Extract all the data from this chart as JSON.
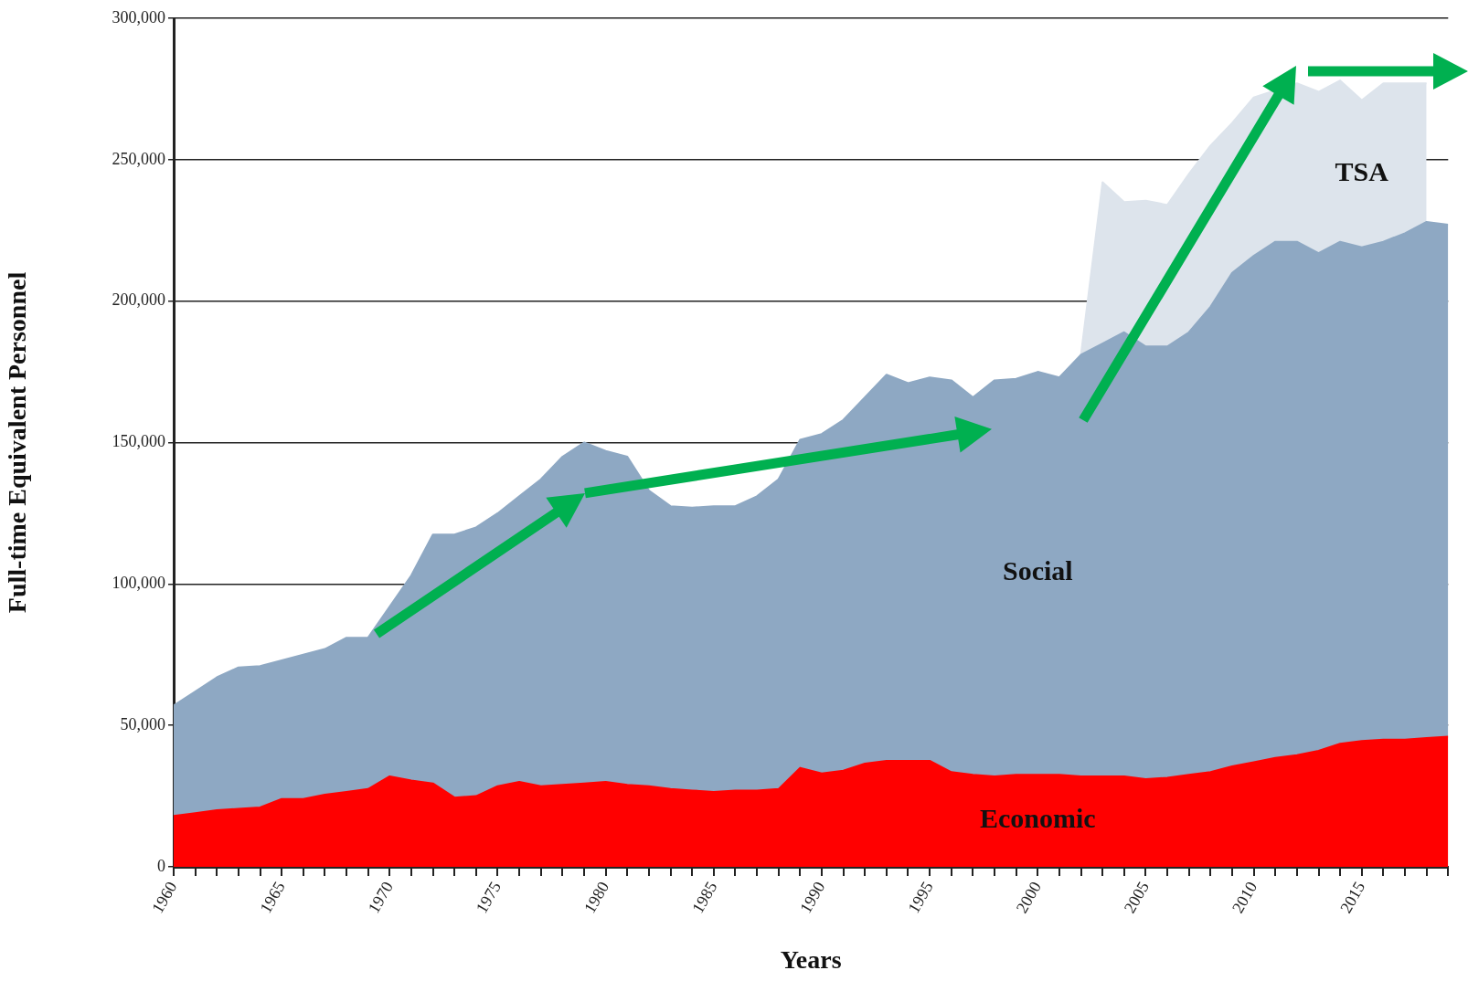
{
  "chart_data": {
    "type": "area",
    "stacked": true,
    "xlabel": "Years",
    "ylabel": "Full-time Equivalent Personnel",
    "x": [
      1960,
      1961,
      1962,
      1963,
      1964,
      1965,
      1966,
      1967,
      1968,
      1969,
      1970,
      1971,
      1972,
      1973,
      1974,
      1975,
      1976,
      1977,
      1978,
      1979,
      1980,
      1981,
      1982,
      1983,
      1984,
      1985,
      1986,
      1987,
      1988,
      1989,
      1990,
      1991,
      1992,
      1993,
      1994,
      1995,
      1996,
      1997,
      1998,
      1999,
      2000,
      2001,
      2002,
      2003,
      2004,
      2005,
      2006,
      2007,
      2008,
      2009,
      2010,
      2011,
      2012,
      2013,
      2014,
      2015,
      2016,
      2017,
      2018,
      2019
    ],
    "series": [
      {
        "name": "Economic",
        "color": "#ff0000",
        "values": [
          18000,
          19000,
          20000,
          20500,
          21000,
          24000,
          24000,
          25500,
          26500,
          27500,
          32000,
          30500,
          29500,
          24500,
          25000,
          28500,
          30000,
          28500,
          29000,
          29500,
          30000,
          29000,
          28500,
          27500,
          27000,
          26500,
          27000,
          27000,
          27500,
          35000,
          33000,
          34000,
          36500,
          37500,
          37500,
          37500,
          33500,
          32500,
          32000,
          32500,
          32500,
          32500,
          32000,
          32000,
          32000,
          31000,
          31500,
          32500,
          33500,
          35500,
          37000,
          38500,
          39500,
          41000,
          43500,
          44500,
          45000,
          45000,
          45500,
          46000
        ]
      },
      {
        "name": "Social",
        "color": "#8ea8c3",
        "values": [
          39000,
          43000,
          47000,
          50000,
          50000,
          49000,
          51000,
          51500,
          54500,
          53500,
          60000,
          72500,
          88000,
          93000,
          95000,
          96500,
          101000,
          108500,
          116000,
          120500,
          117000,
          116000,
          104500,
          100000,
          100000,
          101000,
          100500,
          104000,
          109500,
          116000,
          120000,
          124000,
          129500,
          136500,
          133500,
          135500,
          138500,
          133500,
          140000,
          140000,
          142500,
          140500,
          149000,
          153000,
          157000,
          153000,
          152500,
          156500,
          164500,
          174500,
          179000,
          182500,
          181500,
          176000,
          177500,
          174500,
          176000,
          179000,
          182500,
          181000
        ]
      },
      {
        "name": "TSA",
        "color": "#dde4ec",
        "values": [
          null,
          null,
          null,
          null,
          null,
          null,
          null,
          null,
          null,
          null,
          null,
          null,
          null,
          null,
          null,
          null,
          null,
          null,
          null,
          null,
          null,
          null,
          null,
          null,
          null,
          null,
          null,
          null,
          null,
          null,
          null,
          null,
          null,
          null,
          null,
          null,
          null,
          null,
          null,
          null,
          null,
          null,
          0,
          57000,
          46000,
          51500,
          50000,
          56000,
          57000,
          53000,
          56000,
          null,
          56000,
          57000,
          57000,
          52000,
          56000,
          53000,
          49000,
          null
        ]
      }
    ],
    "xlim": [
      1960,
      2019
    ],
    "xticks": [
      1960,
      {
        "value": 1961,
        "label": null
      },
      {
        "value": 1962,
        "label": null
      },
      {
        "value": 1963,
        "label": null
      },
      {
        "value": 1964,
        "label": null
      },
      1965,
      {
        "value": 1966,
        "label": null
      },
      {
        "value": 1967,
        "label": null
      },
      {
        "value": 1968,
        "label": null
      },
      {
        "value": 1969,
        "label": null
      },
      1970,
      {
        "value": 1971,
        "label": null
      },
      {
        "value": 1972,
        "label": null
      },
      {
        "value": 1973,
        "label": null
      },
      {
        "value": 1974,
        "label": null
      },
      1975,
      {
        "value": 1976,
        "label": null
      },
      {
        "value": 1977,
        "label": null
      },
      {
        "value": 1978,
        "label": null
      },
      {
        "value": 1979,
        "label": null
      },
      1980,
      {
        "value": 1981,
        "label": null
      },
      {
        "value": 1982,
        "label": null
      },
      {
        "value": 1983,
        "label": null
      },
      {
        "value": 1984,
        "label": null
      },
      1985,
      {
        "value": 1986,
        "label": null
      },
      {
        "value": 1987,
        "label": null
      },
      {
        "value": 1988,
        "label": null
      },
      {
        "value": 1989,
        "label": null
      },
      1990,
      {
        "value": 1991,
        "label": null
      },
      {
        "value": 1992,
        "label": null
      },
      {
        "value": 1993,
        "label": null
      },
      {
        "value": 1994,
        "label": null
      },
      1995,
      {
        "value": 1996,
        "label": null
      },
      {
        "value": 1997,
        "label": null
      },
      {
        "value": 1998,
        "label": null
      },
      {
        "value": 1999,
        "label": null
      },
      2000,
      {
        "value": 2001,
        "label": null
      },
      {
        "value": 2002,
        "label": null
      },
      {
        "value": 2003,
        "label": null
      },
      {
        "value": 2004,
        "label": null
      },
      2005,
      {
        "value": 2006,
        "label": null
      },
      {
        "value": 2007,
        "label": null
      },
      {
        "value": 2008,
        "label": null
      },
      {
        "value": 2009,
        "label": null
      },
      2010,
      {
        "value": 2011,
        "label": null
      },
      {
        "value": 2012,
        "label": null
      },
      {
        "value": 2013,
        "label": null
      },
      {
        "value": 2014,
        "label": null
      },
      2015,
      {
        "value": 2016,
        "label": null
      },
      {
        "value": 2017,
        "label": null
      },
      {
        "value": 2018,
        "label": null
      },
      {
        "value": 2019,
        "label": null
      }
    ],
    "ylim": [
      0,
      300000
    ],
    "yticks": [
      {
        "value": 0,
        "label": "0"
      },
      {
        "value": 50000,
        "label": "50,000"
      },
      {
        "value": 100000,
        "label": "100,000"
      },
      {
        "value": 150000,
        "label": "150,000"
      },
      {
        "value": 200000,
        "label": "200,000"
      },
      {
        "value": 250000,
        "label": "250,000"
      },
      {
        "value": 300000,
        "label": "300,000"
      }
    ],
    "grid": "y",
    "legend": false
  }
}
